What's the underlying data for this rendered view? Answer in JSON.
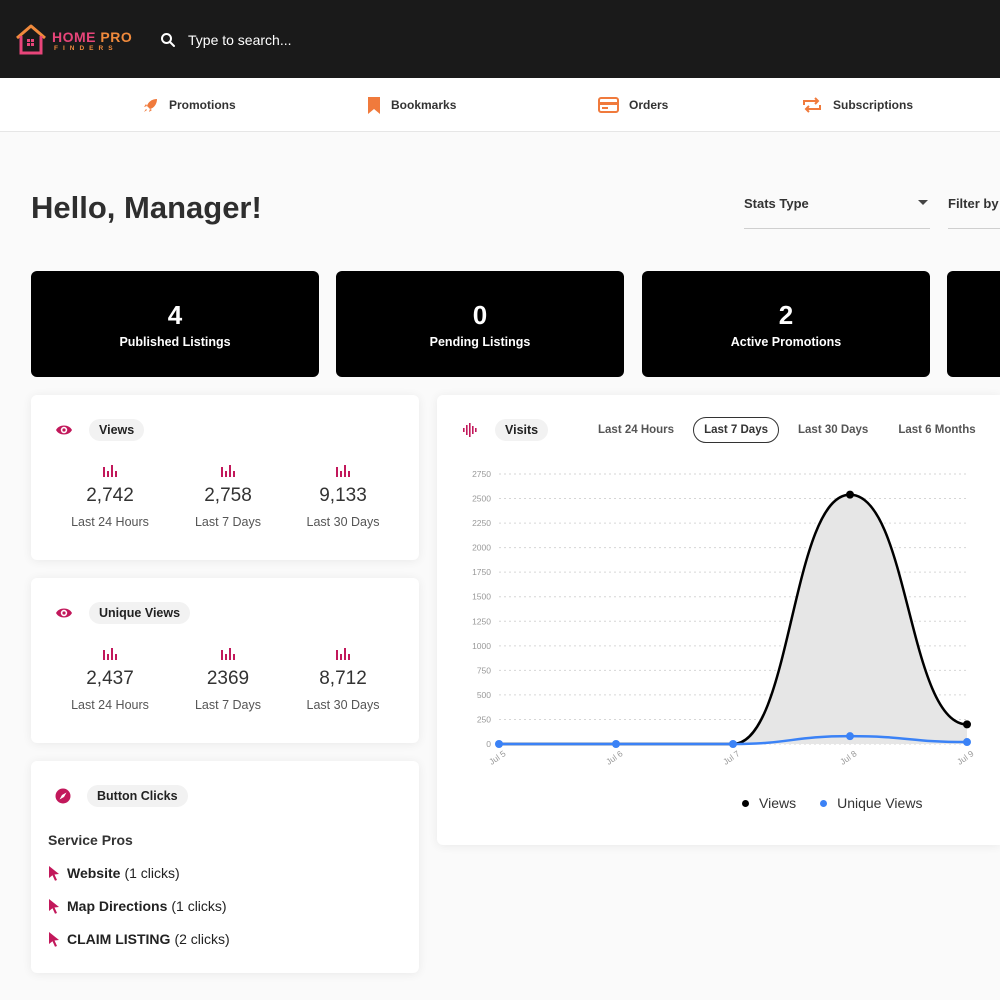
{
  "header": {
    "logo": {
      "line1a": "HOME",
      "line1b": "PRO",
      "line2": "FINDERS"
    },
    "search": {
      "placeholder": "Type to search..."
    }
  },
  "nav": [
    {
      "label": "Promotions",
      "icon": "rocket-icon"
    },
    {
      "label": "Bookmarks",
      "icon": "bookmark-icon"
    },
    {
      "label": "Orders",
      "icon": "credit-card-icon"
    },
    {
      "label": "Subscriptions",
      "icon": "repeat-icon"
    }
  ],
  "greeting": "Hello, Manager!",
  "filters": {
    "stats_type": "Stats Type",
    "filter_by": "Filter by"
  },
  "stat_cards": [
    {
      "value": "4",
      "label": "Published Listings"
    },
    {
      "value": "0",
      "label": "Pending Listings"
    },
    {
      "value": "2",
      "label": "Active Promotions"
    }
  ],
  "views_panel": {
    "title": "Views",
    "metrics": [
      {
        "value": "2,742",
        "caption": "Last 24 Hours"
      },
      {
        "value": "2,758",
        "caption": "Last 7 Days"
      },
      {
        "value": "9,133",
        "caption": "Last 30 Days"
      }
    ]
  },
  "unique_views_panel": {
    "title": "Unique Views",
    "metrics": [
      {
        "value": "2,437",
        "caption": "Last 24 Hours"
      },
      {
        "value": "2369",
        "caption": "Last 7 Days"
      },
      {
        "value": "8,712",
        "caption": "Last 30 Days"
      }
    ]
  },
  "button_clicks_panel": {
    "title": "Button Clicks",
    "section": "Service Pros",
    "items": [
      {
        "name": "Website",
        "count": "(1 clicks)"
      },
      {
        "name": "Map Directions",
        "count": "(1 clicks)"
      },
      {
        "name": "CLAIM LISTING",
        "count": "(2 clicks)"
      }
    ]
  },
  "visits_panel": {
    "title": "Visits",
    "tabs": [
      "Last 24 Hours",
      "Last 7 Days",
      "Last 30 Days",
      "Last 6 Months"
    ],
    "active_tab": "Last 7 Days"
  },
  "colors": {
    "accent": "#c2185b",
    "orange": "#f07a3c",
    "views": "#000000",
    "unique_views": "#3b82f6"
  },
  "chart_data": {
    "type": "line",
    "x": [
      "Jul 5",
      "Jul 6",
      "Jul 7",
      "Jul 8",
      "Jul 9"
    ],
    "ylim": [
      0,
      2750
    ],
    "yticks": [
      0,
      250,
      500,
      750,
      1000,
      1250,
      1500,
      1750,
      2000,
      2250,
      2500,
      2750
    ],
    "grid": true,
    "legend": "bottom",
    "series": [
      {
        "name": "Views",
        "values": [
          0,
          0,
          0,
          2540,
          200
        ],
        "color": "#000000"
      },
      {
        "name": "Unique Views",
        "values": [
          0,
          0,
          0,
          80,
          20
        ],
        "color": "#3b82f6"
      }
    ]
  }
}
